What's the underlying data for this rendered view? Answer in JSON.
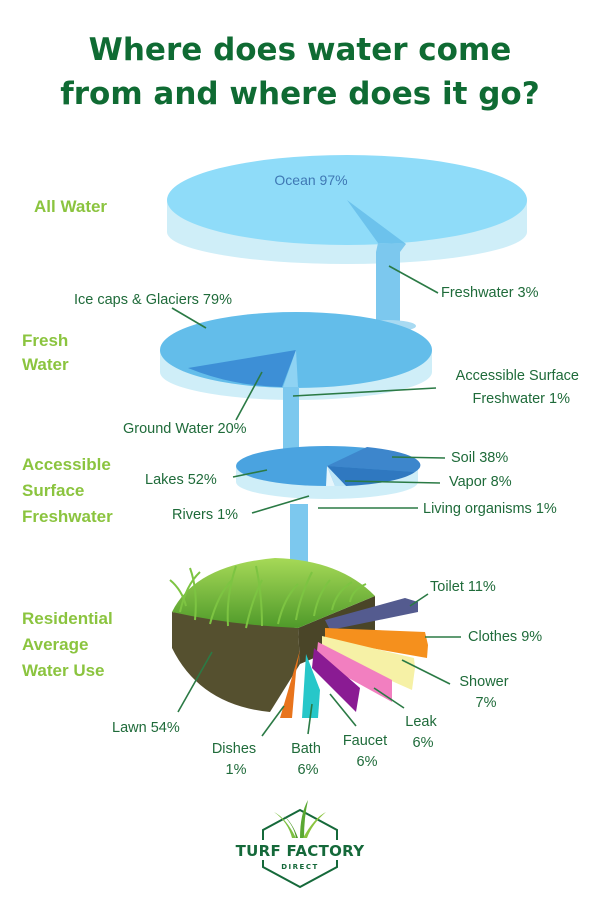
{
  "title": {
    "line1": "Where does water come",
    "line2": "from and where does it go?"
  },
  "chart_data": {
    "type": "pie",
    "levels": [
      {
        "section": [
          "All  Water"
        ],
        "slices": [
          {
            "label": "Ocean 97%",
            "value": 97
          },
          {
            "label": "Freshwater 3%",
            "value": 3
          }
        ]
      },
      {
        "section": [
          "Fresh",
          "Water"
        ],
        "slices": [
          {
            "label": "Ice caps & Glaciers 79%",
            "value": 79
          },
          {
            "label": "Ground Water 20%",
            "value": 20
          },
          {
            "label": "Accessible Surface Freshwater 1%",
            "lines": [
              "Accessible Surface",
              "Freshwater 1%"
            ],
            "value": 1
          }
        ]
      },
      {
        "section": [
          "Accessible",
          "Surface",
          "Freshwater"
        ],
        "slices": [
          {
            "label": "Lakes 52%",
            "value": 52
          },
          {
            "label": "Soil 38%",
            "value": 38
          },
          {
            "label": "Vapor  8%",
            "value": 8
          },
          {
            "label": "Rivers  1%",
            "value": 1
          },
          {
            "label": "Living organisms 1%",
            "value": 1
          }
        ]
      },
      {
        "section": [
          "Residential",
          "Average",
          "Water Use"
        ],
        "slices": [
          {
            "label": "Lawn 54%",
            "value": 54,
            "color": "#5fb53a"
          },
          {
            "label": "Toilet 11%",
            "value": 11,
            "color": "#545b8f"
          },
          {
            "label": "Clothes 9%",
            "value": 9,
            "color": "#f5901d"
          },
          {
            "label": "Shower 7%",
            "lines": [
              "Shower",
              "7%"
            ],
            "value": 7,
            "color": "#f6f1a6"
          },
          {
            "label": "Leak 6%",
            "lines": [
              "Leak",
              "6%"
            ],
            "value": 6,
            "color": "#f27fc0"
          },
          {
            "label": "Faucet 6%",
            "lines": [
              "Faucet",
              "6%"
            ],
            "value": 6,
            "color": "#8a1b93"
          },
          {
            "label": "Bath 6%",
            "lines": [
              "Bath",
              "6%"
            ],
            "value": 6,
            "color": "#27c7c9"
          },
          {
            "label": "Dishes 1%",
            "lines": [
              "Dishes",
              "1%"
            ],
            "value": 1,
            "color": "#e8741c"
          }
        ]
      }
    ]
  },
  "brand": {
    "name": "TURF FACTORY",
    "sub": "DIRECT"
  }
}
